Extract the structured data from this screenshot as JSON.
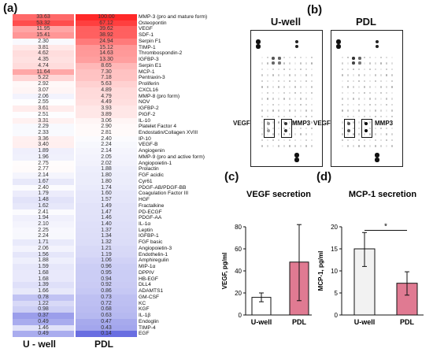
{
  "panel_labels": {
    "a": "(a)",
    "b": "(b)",
    "c": "(c)",
    "d": "(d)"
  },
  "heatmap": {
    "columns": [
      "U - well",
      "PDL"
    ],
    "rows": [
      {
        "name": "MMP-3 (pro and mature form)",
        "u": "33.63",
        "p": "100.00"
      },
      {
        "name": "Osteopontin",
        "u": "53.32",
        "p": "67.12"
      },
      {
        "name": "VEGF",
        "u": "11.95",
        "p": "39.62"
      },
      {
        "name": "SDF-1",
        "u": "15.41",
        "p": "38.92"
      },
      {
        "name": "Serpin F1",
        "u": "2.30",
        "p": "24.94"
      },
      {
        "name": "TIMP-1",
        "u": "3.81",
        "p": "15.12"
      },
      {
        "name": "Thrombospondin-2",
        "u": "4.62",
        "p": "14.63"
      },
      {
        "name": "IGFBP-3",
        "u": "4.35",
        "p": "13.30"
      },
      {
        "name": "Serpin E1",
        "u": "4.74",
        "p": "8.65"
      },
      {
        "name": "MCP-1",
        "u": "11.64",
        "p": "7.30"
      },
      {
        "name": "Pentraxin-3",
        "u": "5.22",
        "p": "7.18"
      },
      {
        "name": "Proliferin",
        "u": "2.92",
        "p": "5.63"
      },
      {
        "name": "CXCL16",
        "u": "3.07",
        "p": "4.89"
      },
      {
        "name": "MMP-8 (pro form)",
        "u": "2.06",
        "p": "4.79"
      },
      {
        "name": "NOV",
        "u": "2.55",
        "p": "4.49"
      },
      {
        "name": "IGFBP-2",
        "u": "3.61",
        "p": "3.93"
      },
      {
        "name": "PIGF-2",
        "u": "2.51",
        "p": "3.89"
      },
      {
        "name": "IL-10",
        "u": "3.31",
        "p": "3.06"
      },
      {
        "name": "Platelet Factor 4",
        "u": "2.29",
        "p": "2.90"
      },
      {
        "name": "Endostatin/Collagen XVIII",
        "u": "2.33",
        "p": "2.81"
      },
      {
        "name": "IP-10",
        "u": "3.36",
        "p": "2.40"
      },
      {
        "name": "VEGF-B",
        "u": "3.40",
        "p": "2.24"
      },
      {
        "name": "Angiogenin",
        "u": "1.89",
        "p": "2.14"
      },
      {
        "name": "MMP-9 (pro and active form)",
        "u": "1.96",
        "p": "2.05"
      },
      {
        "name": "Angiopoietin-1",
        "u": "2.75",
        "p": "2.02"
      },
      {
        "name": "Prolactin",
        "u": "2.77",
        "p": "1.88"
      },
      {
        "name": "FGF acidic",
        "u": "2.14",
        "p": "1.80"
      },
      {
        "name": "Cyr61",
        "u": "1.67",
        "p": "1.80"
      },
      {
        "name": "PDGF-AB/PDGF-BB",
        "u": "2.40",
        "p": "1.74"
      },
      {
        "name": "Coagulation Factor III",
        "u": "1.79",
        "p": "1.60"
      },
      {
        "name": "HGF",
        "u": "1.48",
        "p": "1.57"
      },
      {
        "name": "Fractalkine",
        "u": "1.62",
        "p": "1.49"
      },
      {
        "name": "PD-ECGF",
        "u": "2.41",
        "p": "1.47"
      },
      {
        "name": "PDGF-AA",
        "u": "1.94",
        "p": "1.46"
      },
      {
        "name": "IL-1α",
        "u": "2.10",
        "p": "1.40"
      },
      {
        "name": "Leptin",
        "u": "2.25",
        "p": "1.37"
      },
      {
        "name": "IGFBP-1",
        "u": "2.24",
        "p": "1.34"
      },
      {
        "name": "FGF basic",
        "u": "1.71",
        "p": "1.32"
      },
      {
        "name": "Angiopoietin-3",
        "u": "2.06",
        "p": "1.21"
      },
      {
        "name": "Endothelin-1",
        "u": "1.56",
        "p": "1.19"
      },
      {
        "name": "Amphiregulin",
        "u": "1.88",
        "p": "1.06"
      },
      {
        "name": "MIP-1α",
        "u": "1.59",
        "p": "0.96"
      },
      {
        "name": "DPPIV",
        "u": "1.68",
        "p": "0.95"
      },
      {
        "name": "HB-EGF",
        "u": "1.68",
        "p": "0.94"
      },
      {
        "name": "DLL4",
        "u": "1.39",
        "p": "0.92"
      },
      {
        "name": "ADAMTS1",
        "u": "1.66",
        "p": "0.86"
      },
      {
        "name": "GM-CSF",
        "u": "0.78",
        "p": "0.73"
      },
      {
        "name": "KC",
        "u": "1.22",
        "p": "0.72"
      },
      {
        "name": "KGF",
        "u": "0.98",
        "p": "0.68"
      },
      {
        "name": "IL-1β",
        "u": "0.37",
        "p": "0.63"
      },
      {
        "name": "Endoglin",
        "u": "0.49",
        "p": "0.47"
      },
      {
        "name": "TIMP-4",
        "u": "1.46",
        "p": "0.43"
      },
      {
        "name": "EGF",
        "u": "0.49",
        "p": "0.14"
      }
    ]
  },
  "blots": {
    "left_title": "U-well",
    "right_title": "PDL",
    "label_vegf": "VEGF",
    "label_mmp3": "MMP3"
  },
  "chart_data": [
    {
      "type": "bar",
      "title": "VEGF secretion",
      "ylabel": "VEGF, pg/ml",
      "categories": [
        "U-well",
        "PDL"
      ],
      "values": [
        16,
        48
      ],
      "errors_upper": [
        20,
        82
      ],
      "errors_lower": [
        12,
        13
      ],
      "ylim": [
        0,
        80
      ],
      "yticks": [
        0,
        20,
        40,
        60,
        80
      ],
      "colors": [
        "#ffffff",
        "#e07a92"
      ]
    },
    {
      "type": "bar",
      "title": "MCP-1 secretion",
      "ylabel": "MCP-1, pg/ml",
      "categories": [
        "U-well",
        "PDL"
      ],
      "values": [
        15,
        7.2
      ],
      "errors_upper": [
        18.7,
        9.8
      ],
      "errors_lower": [
        11,
        4.5
      ],
      "ylim": [
        0,
        20
      ],
      "yticks": [
        0,
        5,
        10,
        15,
        20
      ],
      "significance": "*",
      "colors": [
        "#f2f2f2",
        "#e07a92"
      ]
    }
  ]
}
